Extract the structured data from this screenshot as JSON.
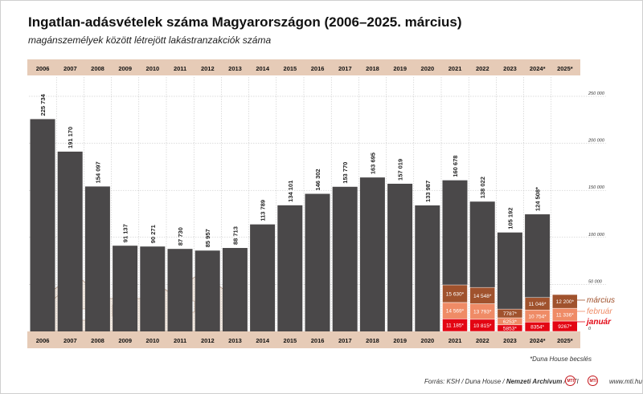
{
  "title": "Ingatlan-adásvételek száma Magyarországon (2006–2025. március)",
  "subtitle": "magánszemélyek között létrejött lakástranzakciók száma",
  "footnote": "*Duna House becslés",
  "source_prefix": "Forrás: KSH / Duna House / ",
  "source_bold": "Nemzeti Archívum",
  "source_suffix": " / MTI",
  "website": "www.mti.hu",
  "logos": [
    "MTI",
    "MTI"
  ],
  "colors": {
    "bar": "#4a4849",
    "header_band": "#e6cbb7",
    "january": "#e30613",
    "february": "#ef8b66",
    "march": "#a0522d",
    "ghost_house": "#f6ece3"
  },
  "chart_data": {
    "type": "bar",
    "categories": [
      "2006",
      "2007",
      "2008",
      "2009",
      "2010",
      "2011",
      "2012",
      "2013",
      "2014",
      "2015",
      "2016",
      "2017",
      "2018",
      "2019",
      "2020",
      "2021",
      "2022",
      "2023",
      "2024*",
      "2025*"
    ],
    "values": [
      225734,
      191170,
      154097,
      91137,
      90271,
      87730,
      85957,
      88713,
      113789,
      134101,
      146302,
      153770,
      163695,
      157019,
      133987,
      160678,
      138022,
      105192,
      124508,
      null
    ],
    "value_labels": [
      "225 734",
      "191 170",
      "154 097",
      "91 137",
      "90 271",
      "87 730",
      "85 957",
      "88 713",
      "113 789",
      "134 101",
      "146 302",
      "153 770",
      "163 695",
      "157 019",
      "133 987",
      "160 678",
      "138 022",
      "105 192",
      "124 508*",
      ""
    ],
    "ylim": [
      0,
      250000
    ],
    "y_ticks": [
      0,
      50000,
      100000,
      150000,
      200000,
      250000
    ],
    "y_tick_labels": [
      "0",
      "50 000",
      "100 000",
      "150 000",
      "200 000",
      "250 000"
    ],
    "grid": true,
    "monthly": {
      "series": [
        {
          "name": "január",
          "values": [
            11185,
            10815,
            5853,
            8354,
            9267
          ],
          "labels": [
            "11 185*",
            "10 815*",
            "5853*",
            "8354*",
            "9267*"
          ]
        },
        {
          "name": "február",
          "values": [
            14569,
            13793,
            6253,
            10754,
            11336
          ],
          "labels": [
            "14 569*",
            "13 793*",
            "6253*",
            "10 754*",
            "11 336*"
          ]
        },
        {
          "name": "március",
          "values": [
            15630,
            14548,
            7787,
            11046,
            12200
          ],
          "labels": [
            "15 630*",
            "14 548*",
            "7787*",
            "11 046*",
            "12 200*"
          ]
        }
      ],
      "categories": [
        "2021",
        "2022",
        "2023",
        "2024*",
        "2025*"
      ]
    }
  }
}
